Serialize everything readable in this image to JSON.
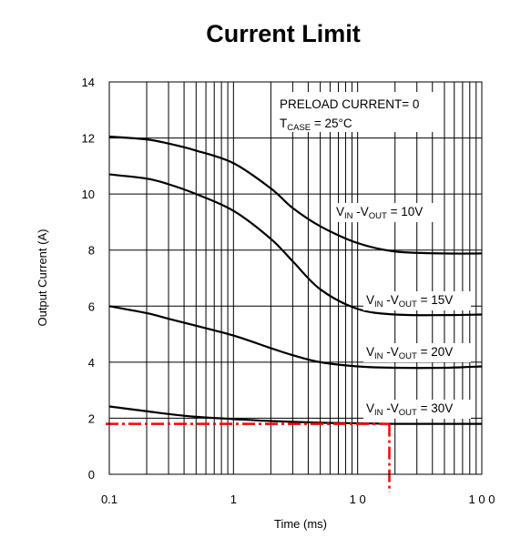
{
  "chart_data": {
    "type": "line",
    "title": "Current Limit",
    "xlabel": "Time  (ms)",
    "ylabel": "Output Current  (A)",
    "x_scale": "log",
    "xlim": [
      0.1,
      100
    ],
    "ylim": [
      0,
      14
    ],
    "x_ticks": [
      "0.1",
      "1",
      "1 0",
      "1 0 0"
    ],
    "y_ticks": [
      "0",
      "2",
      "4",
      "6",
      "8",
      "10",
      "12",
      "14"
    ],
    "grid": true,
    "annotations": {
      "preload": "PRELOAD CURRENT= 0",
      "tcase_main": "T",
      "tcase_sub": "CASE",
      "tcase_val": " = 25°C"
    },
    "series": [
      {
        "name": "V_IN - V_OUT = 10V",
        "label": {
          "v": "V",
          "in": "IN",
          "mid": " -V",
          "out": "OUT",
          "val": "  = 10V"
        },
        "color": "#000000",
        "points": [
          [
            0.1,
            12.05
          ],
          [
            0.2,
            11.95
          ],
          [
            0.3,
            11.8
          ],
          [
            0.5,
            11.55
          ],
          [
            1,
            11.1
          ],
          [
            2,
            10.2
          ],
          [
            3,
            9.5
          ],
          [
            5,
            8.85
          ],
          [
            10,
            8.25
          ],
          [
            20,
            7.95
          ],
          [
            50,
            7.88
          ],
          [
            100,
            7.88
          ]
        ]
      },
      {
        "name": "V_IN - V_OUT = 15V",
        "label": {
          "v": "V",
          "in": "IN",
          "mid": " -V",
          "out": "OUT",
          "val": "  = 15V"
        },
        "color": "#000000",
        "points": [
          [
            0.1,
            10.7
          ],
          [
            0.2,
            10.55
          ],
          [
            0.3,
            10.35
          ],
          [
            0.5,
            10.0
          ],
          [
            1,
            9.4
          ],
          [
            2,
            8.4
          ],
          [
            3,
            7.6
          ],
          [
            5,
            6.6
          ],
          [
            10,
            5.9
          ],
          [
            20,
            5.7
          ],
          [
            50,
            5.68
          ],
          [
            100,
            5.7
          ]
        ]
      },
      {
        "name": "V_IN - V_OUT = 20V",
        "label": {
          "v": "V",
          "in": "IN",
          "mid": " -V",
          "out": "OUT",
          "val": "  = 20V"
        },
        "color": "#000000",
        "points": [
          [
            0.1,
            6.0
          ],
          [
            0.2,
            5.75
          ],
          [
            0.3,
            5.55
          ],
          [
            0.5,
            5.3
          ],
          [
            1,
            4.95
          ],
          [
            2,
            4.5
          ],
          [
            3,
            4.25
          ],
          [
            5,
            4.0
          ],
          [
            10,
            3.85
          ],
          [
            20,
            3.8
          ],
          [
            50,
            3.8
          ],
          [
            100,
            3.85
          ]
        ]
      },
      {
        "name": "V_IN - V_OUT = 30V",
        "label": {
          "v": "V",
          "in": "IN",
          "mid": " -V",
          "out": "OUT",
          "val": "  = 30V"
        },
        "color": "#000000",
        "points": [
          [
            0.1,
            2.42
          ],
          [
            0.2,
            2.25
          ],
          [
            0.3,
            2.15
          ],
          [
            0.5,
            2.05
          ],
          [
            1,
            1.97
          ],
          [
            2,
            1.9
          ],
          [
            5,
            1.84
          ],
          [
            10,
            1.82
          ],
          [
            20,
            1.8
          ],
          [
            50,
            1.8
          ],
          [
            100,
            1.8
          ]
        ]
      }
    ],
    "reference_lines": {
      "color": "#ff0000",
      "y_value": 1.8,
      "x_value": 18
    }
  }
}
